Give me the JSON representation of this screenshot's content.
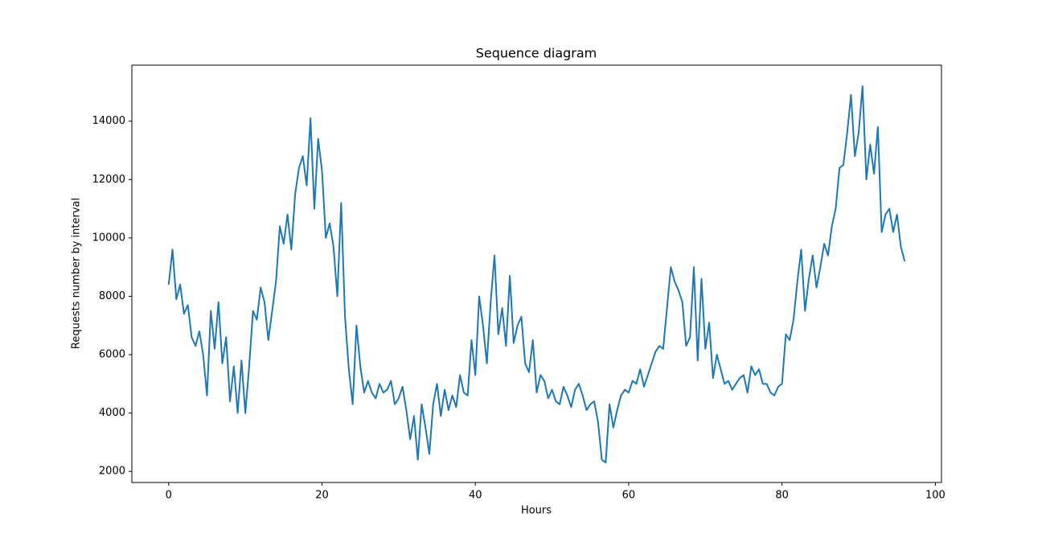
{
  "chart_data": {
    "type": "line",
    "title": "Sequence diagram",
    "xlabel": "Hours",
    "ylabel": "Requests number by interval",
    "color": "#1f77b4",
    "x": [
      0,
      0.5,
      1,
      1.5,
      2,
      2.5,
      3,
      3.5,
      4,
      4.5,
      5,
      5.5,
      6,
      6.5,
      7,
      7.5,
      8,
      8.5,
      9,
      9.5,
      10,
      10.5,
      11,
      11.5,
      12,
      12.5,
      13,
      13.5,
      14,
      14.5,
      15,
      15.5,
      16,
      16.5,
      17,
      17.5,
      18,
      18.5,
      19,
      19.5,
      20,
      20.5,
      21,
      21.5,
      22,
      22.5,
      23,
      23.5,
      24,
      24.5,
      25,
      25.5,
      26,
      26.5,
      27,
      27.5,
      28,
      28.5,
      29,
      29.5,
      30,
      30.5,
      31,
      31.5,
      32,
      32.5,
      33,
      33.5,
      34,
      34.5,
      35,
      35.5,
      36,
      36.5,
      37,
      37.5,
      38,
      38.5,
      39,
      39.5,
      40,
      40.5,
      41,
      41.5,
      42,
      42.5,
      43,
      43.5,
      44,
      44.5,
      45,
      45.5,
      46,
      46.5,
      47,
      47.5,
      48,
      48.5,
      49,
      49.5,
      50,
      50.5,
      51,
      51.5,
      52,
      52.5,
      53,
      53.5,
      54,
      54.5,
      55,
      55.5,
      56,
      56.5,
      57,
      57.5,
      58,
      58.5,
      59,
      59.5,
      60,
      60.5,
      61,
      61.5,
      62,
      62.5,
      63,
      63.5,
      64,
      64.5,
      65,
      65.5,
      66,
      66.5,
      67,
      67.5,
      68,
      68.5,
      69,
      69.5,
      70,
      70.5,
      71,
      71.5,
      72,
      72.5,
      73,
      73.5,
      74,
      74.5,
      75,
      75.5,
      76,
      76.5,
      77,
      77.5,
      78,
      78.5,
      79,
      79.5,
      80,
      80.5,
      81,
      81.5,
      82,
      82.5,
      83,
      83.5,
      84,
      84.5,
      85,
      85.5,
      86,
      86.5,
      87,
      87.5,
      88,
      88.5,
      89,
      89.5,
      90,
      90.5,
      91,
      91.5,
      92,
      92.5,
      93,
      93.5,
      94,
      94.5,
      95,
      95.5,
      96
    ],
    "values": [
      8400,
      9600,
      7900,
      8400,
      7400,
      7700,
      6600,
      6300,
      6800,
      6000,
      4600,
      7500,
      6200,
      7800,
      5700,
      6600,
      4400,
      5600,
      4000,
      5800,
      4000,
      5600,
      7500,
      7200,
      8300,
      7800,
      6500,
      7500,
      8500,
      10400,
      9800,
      10800,
      9600,
      11500,
      12400,
      12800,
      11800,
      14100,
      11000,
      13400,
      12300,
      10000,
      10500,
      9700,
      8000,
      11200,
      7300,
      5500,
      4300,
      7000,
      5600,
      4700,
      5100,
      4700,
      4500,
      5000,
      4700,
      4800,
      5100,
      4300,
      4500,
      4900,
      4100,
      3100,
      3900,
      2400,
      4300,
      3500,
      2600,
      4300,
      5000,
      3900,
      4800,
      4100,
      4600,
      4200,
      5300,
      4700,
      4600,
      6500,
      5300,
      8000,
      7000,
      5700,
      7800,
      9400,
      6700,
      7600,
      6300,
      8700,
      6400,
      7000,
      7300,
      5700,
      5400,
      6500,
      4700,
      5300,
      5100,
      4500,
      4800,
      4400,
      4300,
      4900,
      4600,
      4200,
      4800,
      5000,
      4600,
      4100,
      4300,
      4400,
      3700,
      2400,
      2300,
      4300,
      3500,
      4100,
      4600,
      4800,
      4700,
      5100,
      5000,
      5500,
      4900,
      5300,
      5700,
      6100,
      6300,
      6200,
      7600,
      9000,
      8500,
      8200,
      7800,
      6300,
      6600,
      9000,
      5800,
      8600,
      6200,
      7100,
      5200,
      6000,
      5500,
      5000,
      5100,
      4800,
      5000,
      5200,
      5300,
      4700,
      5600,
      5300,
      5500,
      5000,
      5000,
      4700,
      4600,
      4900,
      5000,
      6700,
      6500,
      7200,
      8500,
      9600,
      7500,
      8600,
      9400,
      8300,
      9000,
      9800,
      9400,
      10400,
      11000,
      12400,
      12500,
      13600,
      14900,
      12800,
      13600,
      15200,
      12000,
      13200,
      12200,
      13800,
      10200,
      10800,
      11000,
      10200,
      10800,
      9700,
      9200
    ],
    "xlim": [
      -4.8,
      100.8
    ],
    "ylim": [
      1620,
      15920
    ],
    "xticks": [
      0,
      20,
      40,
      60,
      80,
      100
    ],
    "yticks": [
      2000,
      4000,
      6000,
      8000,
      10000,
      12000,
      14000
    ]
  }
}
